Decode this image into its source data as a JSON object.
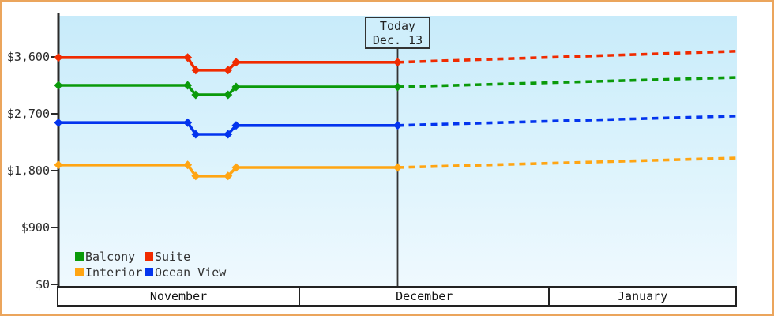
{
  "frame": {
    "border_color": "#eba55c",
    "background": "#ffffff",
    "plot_gradient_top": "#c8ebfa",
    "plot_gradient_bottom": "#eff9fe"
  },
  "today_annotation": {
    "line1": "Today",
    "line2": "Dec. 13"
  },
  "chart_data": {
    "type": "line",
    "title": "",
    "grid": false,
    "legend_position": "bottom-left",
    "x_axis": {
      "unit": "days from Nov 1",
      "total_days": 84,
      "months": [
        {
          "label": "November",
          "days": 30
        },
        {
          "label": "December",
          "days": 31
        },
        {
          "label": "January",
          "days": 23
        }
      ]
    },
    "y_axis": {
      "min": 0,
      "max": 4250,
      "ticks": [
        {
          "label": "$0",
          "value": 0
        },
        {
          "label": "$900",
          "value": 900
        },
        {
          "label": "$1,800",
          "value": 1800
        },
        {
          "label": "$2,700",
          "value": 2700
        },
        {
          "label": "$3,600",
          "value": 3600
        }
      ]
    },
    "today": {
      "day": 42,
      "date_label": "Dec. 13"
    },
    "series": [
      {
        "name": "Suite",
        "color": "#f02b00",
        "solid": [
          [
            0,
            3590
          ],
          [
            16,
            3590
          ],
          [
            17,
            3390
          ],
          [
            21,
            3390
          ],
          [
            22,
            3515
          ],
          [
            42,
            3515
          ]
        ],
        "forecast": [
          [
            42,
            3515
          ],
          [
            84,
            3690
          ]
        ]
      },
      {
        "name": "Balcony",
        "color": "#0a9a0a",
        "solid": [
          [
            0,
            3150
          ],
          [
            16,
            3150
          ],
          [
            17,
            3000
          ],
          [
            21,
            3000
          ],
          [
            22,
            3125
          ],
          [
            42,
            3125
          ]
        ],
        "forecast": [
          [
            42,
            3125
          ],
          [
            84,
            3275
          ]
        ]
      },
      {
        "name": "Ocean View",
        "color": "#0334ee",
        "solid": [
          [
            0,
            2560
          ],
          [
            16,
            2560
          ],
          [
            17,
            2375
          ],
          [
            21,
            2375
          ],
          [
            22,
            2515
          ],
          [
            42,
            2515
          ]
        ],
        "forecast": [
          [
            42,
            2515
          ],
          [
            84,
            2665
          ]
        ]
      },
      {
        "name": "Interior",
        "color": "#ffa513",
        "solid": [
          [
            0,
            1890
          ],
          [
            16,
            1890
          ],
          [
            17,
            1715
          ],
          [
            21,
            1715
          ],
          [
            22,
            1850
          ],
          [
            42,
            1850
          ]
        ],
        "forecast": [
          [
            42,
            1850
          ],
          [
            84,
            2000
          ]
        ]
      }
    ],
    "legend": [
      {
        "label": "Balcony",
        "color": "#0a9a0a"
      },
      {
        "label": "Suite",
        "color": "#f02b00"
      },
      {
        "label": "Interior",
        "color": "#ffa513"
      },
      {
        "label": "Ocean View",
        "color": "#0334ee"
      }
    ]
  }
}
